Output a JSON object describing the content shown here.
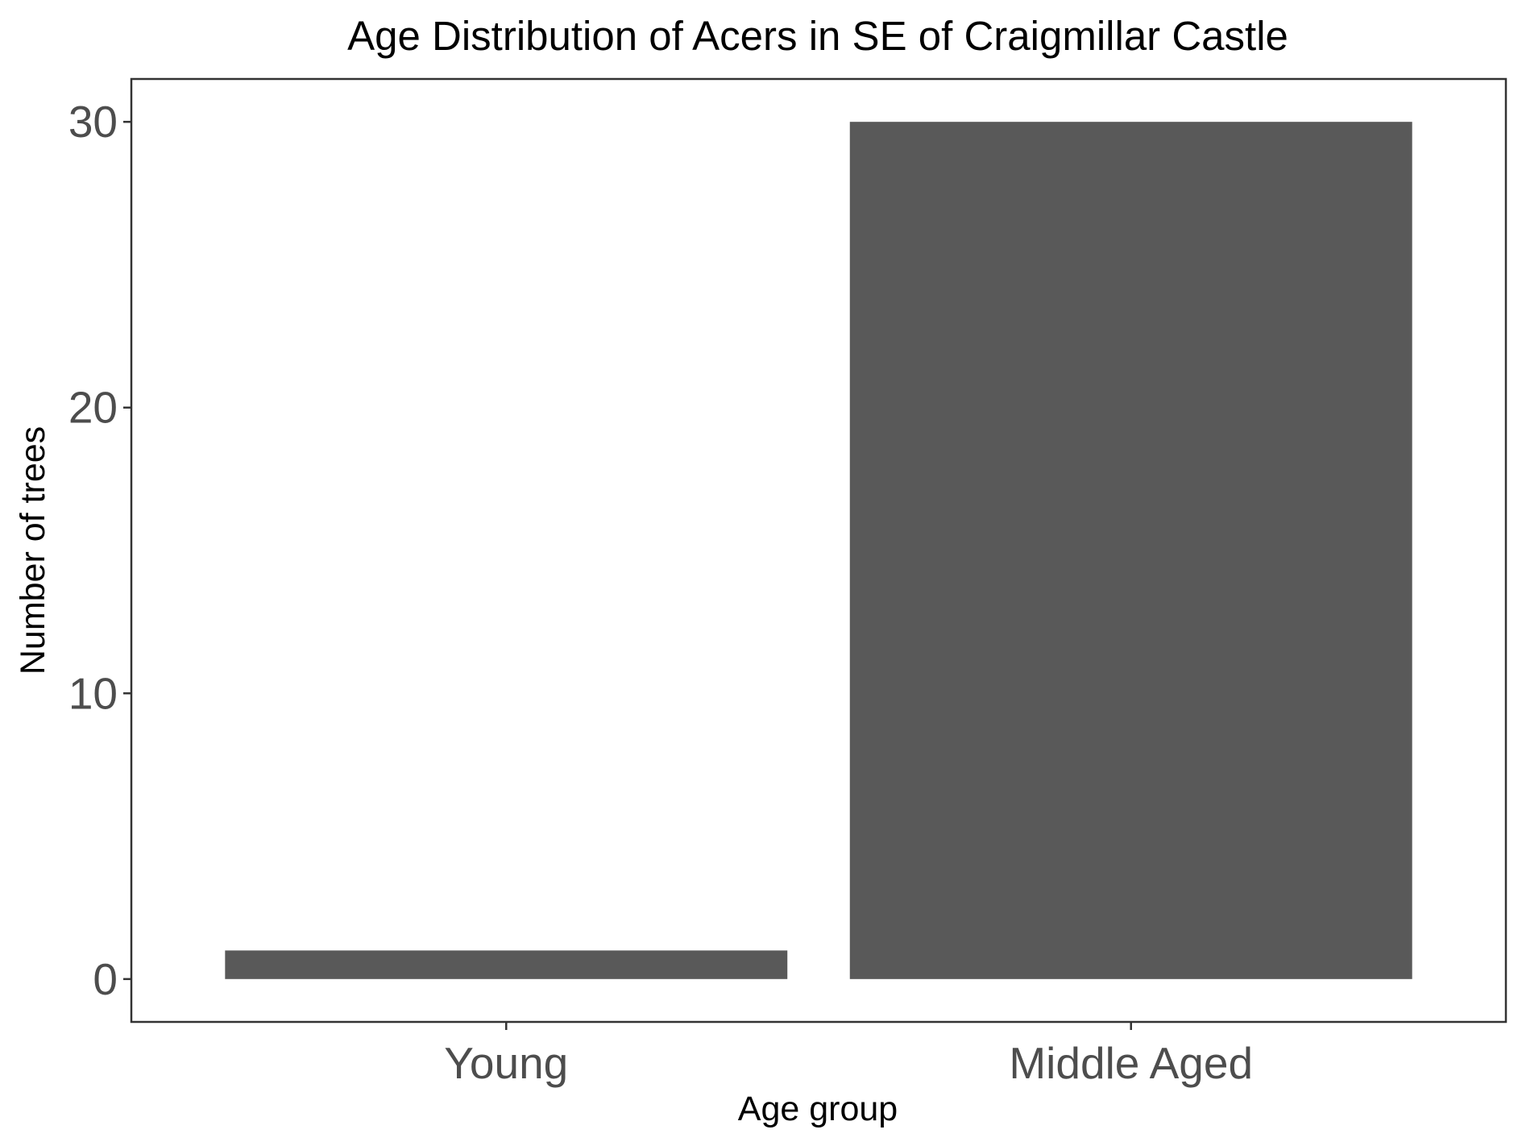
{
  "chart_data": {
    "type": "bar",
    "title": "Age Distribution of Acers in SE of Craigmillar Castle",
    "xlabel": "Age group",
    "ylabel": "Number of trees",
    "categories": [
      "Young",
      "Middle Aged"
    ],
    "values": [
      1,
      30
    ],
    "ylim": [
      -1.5,
      31.5
    ],
    "yticks": [
      0,
      10,
      20,
      30
    ],
    "bar_color": "#595959",
    "grid": false,
    "legend": "none"
  }
}
